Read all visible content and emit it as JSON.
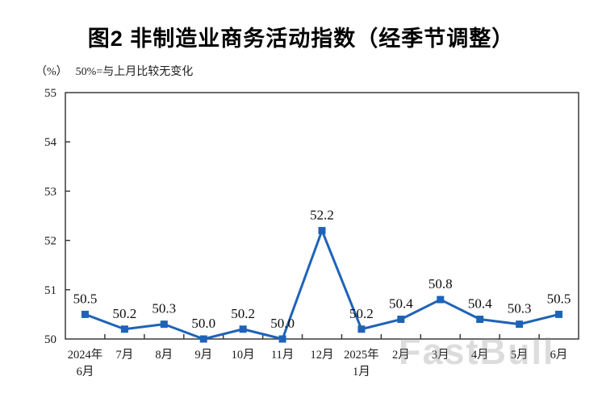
{
  "title": "图2 非制造业商务活动指数（经季节调整）",
  "unit_label": "（%）",
  "annotation": "50%=与上月比较无变化",
  "watermark": "FastBull",
  "colors": {
    "line": "#1E63B8",
    "axis": "#3a3a3a",
    "text": "#1a1a1a",
    "background": "#ffffff",
    "watermark": "rgba(150,150,150,0.33)"
  },
  "chart_data": {
    "type": "line",
    "title": "图2 非制造业商务活动指数（经季节调整）",
    "unit_label": "（%）",
    "annotation": "50%=与上月比较无变化",
    "categories": [
      [
        "2024年",
        "6月"
      ],
      [
        "7月"
      ],
      [
        "8月"
      ],
      [
        "9月"
      ],
      [
        "10月"
      ],
      [
        "11月"
      ],
      [
        "12月"
      ],
      [
        "2025年",
        "1月"
      ],
      [
        "2月"
      ],
      [
        "3月"
      ],
      [
        "4月"
      ],
      [
        "5月"
      ],
      [
        "6月"
      ]
    ],
    "values": [
      50.5,
      50.2,
      50.3,
      50.0,
      50.2,
      50.0,
      52.2,
      50.2,
      50.4,
      50.8,
      50.4,
      50.3,
      50.5
    ],
    "data_labels": [
      "50.5",
      "50.2",
      "50.3",
      "50.0",
      "50.2",
      "50.0",
      "52.2",
      "50.2",
      "50.4",
      "50.8",
      "50.4",
      "50.3",
      "50.5"
    ],
    "ylim": [
      50,
      55
    ],
    "yticks": [
      50,
      51,
      52,
      53,
      54,
      55
    ],
    "xlabel": "",
    "ylabel": "",
    "grid": false,
    "legend": null,
    "line_color": "#1E63B8",
    "marker": "square"
  }
}
